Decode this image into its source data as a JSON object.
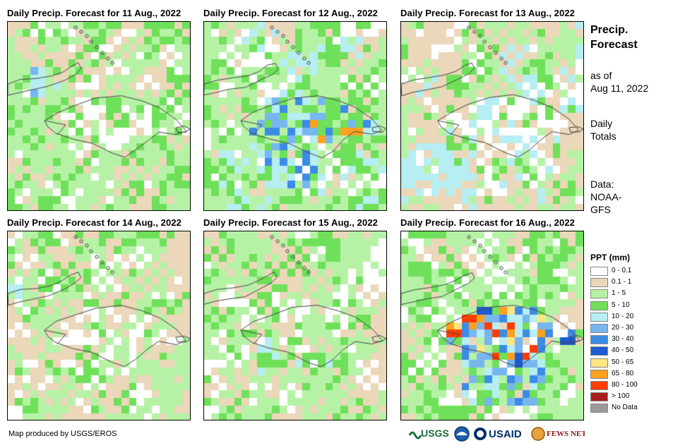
{
  "panels": [
    {
      "title": "Daily  Precip.  Forecast for 11 Aug., 2022",
      "scheme": 0
    },
    {
      "title": "Daily  Precip.  Forecast for 12 Aug., 2022",
      "scheme": 1
    },
    {
      "title": "Daily  Precip.  Forecast for 13 Aug., 2022",
      "scheme": 2
    },
    {
      "title": "Daily  Precip.  Forecast for 14 Aug., 2022",
      "scheme": 3
    },
    {
      "title": "Daily  Precip.  Forecast for 15 Aug., 2022",
      "scheme": 4
    },
    {
      "title": "Daily  Precip.  Forecast for 16 Aug., 2022",
      "scheme": 5
    }
  ],
  "sidebar": {
    "heading_line1": "Precip.",
    "heading_line2": "Forecast",
    "asof_line1": "as of",
    "asof_line2": "Aug 11, 2022",
    "daily_line1": "Daily",
    "daily_line2": "Totals",
    "data_line1": "Data:",
    "data_line2": "NOAA-",
    "data_line3": "GFS"
  },
  "legend": {
    "title": "PPT (mm)",
    "items": [
      {
        "label": "0 - 0.1",
        "color": "#ffffff"
      },
      {
        "label": "0.1 - 1",
        "color": "#ebd7b9"
      },
      {
        "label": "1 - 5",
        "color": "#b6f2a6"
      },
      {
        "label": "5 - 10",
        "color": "#6fe05a"
      },
      {
        "label": "10 - 20",
        "color": "#b6eef2"
      },
      {
        "label": "20 - 30",
        "color": "#78b6f0"
      },
      {
        "label": "30 - 40",
        "color": "#3c8ce6"
      },
      {
        "label": "40 - 50",
        "color": "#1e5ad2"
      },
      {
        "label": "50 - 65",
        "color": "#ffe682"
      },
      {
        "label": "65 - 80",
        "color": "#ffa01e"
      },
      {
        "label": "80 - 100",
        "color": "#ff3c00"
      },
      {
        "label": "> 100",
        "color": "#aa1e1e"
      },
      {
        "label": "No Data",
        "color": "#9a9a9a"
      }
    ]
  },
  "footer": {
    "credit": "Map produced by USGS/EROS",
    "logos": [
      "USGS",
      "NOAA",
      "USAID",
      "FEWS NET"
    ]
  }
}
